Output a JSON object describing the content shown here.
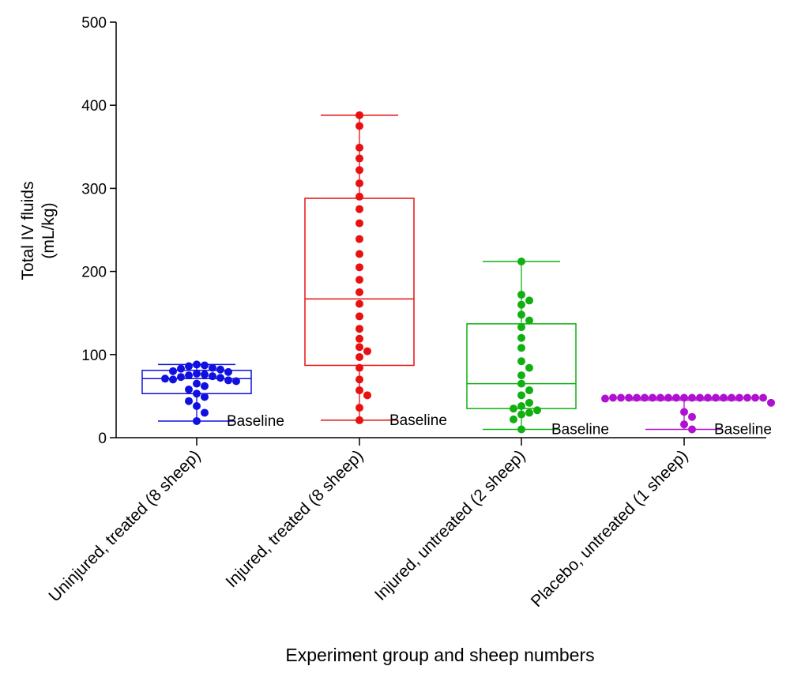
{
  "chart_data": {
    "type": "box",
    "title": "",
    "ylabel_line1": "Total IV fluids",
    "ylabel_line2": "(mL/kg)",
    "xlabel": "Experiment group and sheep numbers",
    "ylim": [
      0,
      500
    ],
    "yticks": [
      0,
      100,
      200,
      300,
      400,
      500
    ],
    "ytick_labels": [
      "0",
      "100",
      "200",
      "300",
      "400",
      "500"
    ],
    "annotation_text": "Baseline",
    "groups": [
      {
        "name": "Uninjured, treated (8 sheep)",
        "color": "#1010e0",
        "box": {
          "min": 20,
          "q1": 53,
          "median": 71,
          "q3": 81,
          "max": 88
        },
        "baseline": 20,
        "points": [
          88,
          87,
          86,
          84,
          83,
          82,
          80,
          79,
          77,
          76,
          75,
          74,
          73,
          72,
          71,
          70,
          69,
          68,
          65,
          62,
          58,
          53,
          49,
          44,
          38,
          30,
          20
        ]
      },
      {
        "name": "Injured, treated (8 sheep)",
        "color": "#e81010",
        "box": {
          "min": 21,
          "q1": 87,
          "median": 167,
          "q3": 288,
          "max": 388
        },
        "baseline": 21,
        "points": [
          388,
          375,
          349,
          336,
          322,
          306,
          290,
          275,
          258,
          239,
          221,
          205,
          190,
          175,
          161,
          146,
          131,
          119,
          109,
          104,
          97,
          84,
          70,
          57,
          51,
          36,
          21
        ]
      },
      {
        "name": "Injured, untreated (2 sheep)",
        "color": "#10b010",
        "box": {
          "min": 10,
          "q1": 35,
          "median": 65,
          "q3": 137,
          "max": 212
        },
        "baseline": 10,
        "points": [
          212,
          172,
          165,
          160,
          148,
          141,
          133,
          120,
          108,
          92,
          84,
          75,
          65,
          57,
          51,
          42,
          38,
          35,
          33,
          30,
          28,
          22,
          10
        ]
      },
      {
        "name": "Placebo, untreated (1 sheep)",
        "color": "#b010d0",
        "box": {
          "min": 10,
          "q1": 46,
          "median": 47,
          "q3": 48,
          "max": 48
        },
        "baseline": 10,
        "points": [
          48,
          48,
          48,
          48,
          48,
          48,
          48,
          48,
          48,
          48,
          48,
          48,
          48,
          48,
          48,
          48,
          48,
          48,
          48,
          48,
          47,
          42,
          31,
          25,
          16,
          10
        ]
      }
    ]
  }
}
